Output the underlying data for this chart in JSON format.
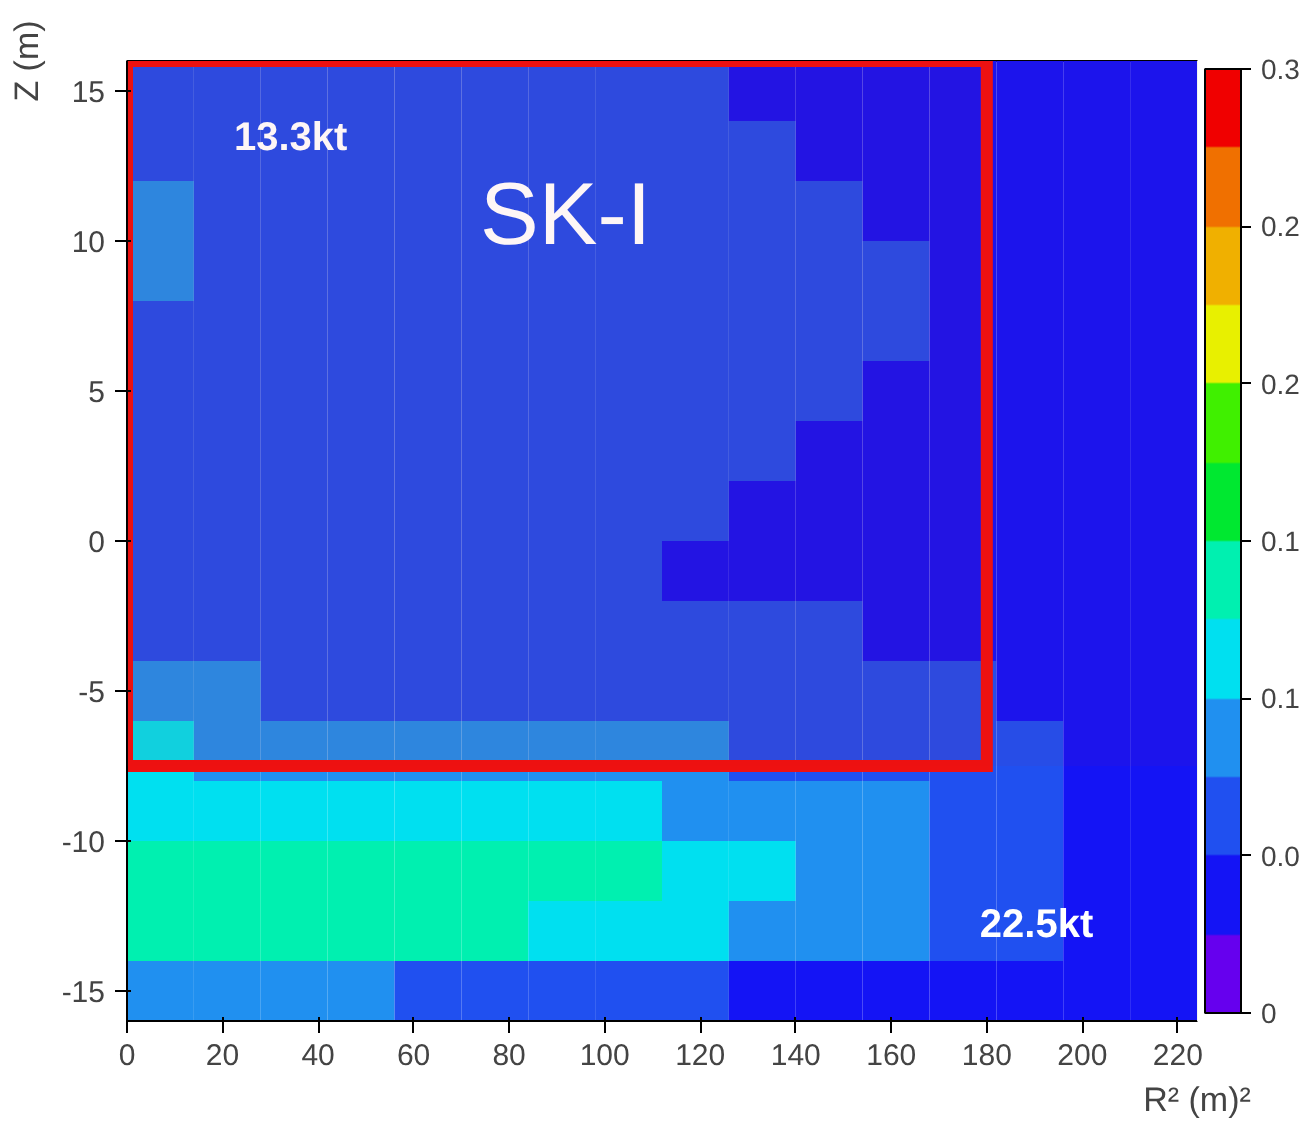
{
  "chart_data": {
    "type": "heatmap",
    "xlabel": "R² (m)²",
    "ylabel": "Z (m)",
    "xlim": [
      0,
      224
    ],
    "ylim": [
      -16,
      16
    ],
    "xticks": [
      0,
      20,
      40,
      60,
      80,
      100,
      120,
      140,
      160,
      180,
      200,
      220
    ],
    "yticks": [
      -15,
      -10,
      -5,
      0,
      5,
      10,
      15
    ],
    "clim": [
      0,
      0.3
    ],
    "cticks": [
      0,
      {
        "value": 0.05,
        "label": "0.0"
      },
      0.1,
      {
        "value": 0.15,
        "label": "0.1"
      },
      0.2,
      {
        "value": 0.25,
        "label": "0.2"
      },
      0.3
    ],
    "colors": [
      "#6600ee",
      "#1414f5",
      "#2050f0",
      "#2090f0",
      "#00e0f0",
      "#00f0b0",
      "#00e830",
      "#40f000",
      "#e8f000",
      "#f0b000",
      "#f07000",
      "#f00000"
    ],
    "cells": [
      [
        0.06,
        0.06,
        0.055,
        0.055,
        0.05,
        0.05,
        0.055,
        0.05,
        0.05,
        0.045,
        0.045,
        0.045,
        0.04,
        0.035,
        0.035,
        0.03
      ],
      [
        0.07,
        0.065,
        0.06,
        0.06,
        0.06,
        0.055,
        0.055,
        0.05,
        0.05,
        0.05,
        0.045,
        0.045,
        0.04,
        0.035,
        0.035,
        0.03
      ],
      [
        0.08,
        0.07,
        0.065,
        0.065,
        0.06,
        0.06,
        0.06,
        0.055,
        0.055,
        0.05,
        0.05,
        0.045,
        0.045,
        0.04,
        0.035,
        0.03
      ],
      [
        0.075,
        0.07,
        0.065,
        0.07,
        0.065,
        0.06,
        0.065,
        0.06,
        0.055,
        0.05,
        0.05,
        0.05,
        0.045,
        0.04,
        0.035,
        0.03
      ],
      [
        0.07,
        0.065,
        0.06,
        0.065,
        0.06,
        0.065,
        0.06,
        0.055,
        0.055,
        0.05,
        0.05,
        0.05,
        0.045,
        0.04,
        0.035,
        0.03
      ],
      [
        0.065,
        0.06,
        0.06,
        0.06,
        0.055,
        0.06,
        0.055,
        0.055,
        0.05,
        0.05,
        0.05,
        0.045,
        0.045,
        0.04,
        0.035,
        0.03
      ],
      [
        0.06,
        0.06,
        0.055,
        0.055,
        0.05,
        0.055,
        0.055,
        0.05,
        0.05,
        0.05,
        0.045,
        0.045,
        0.04,
        0.04,
        0.035,
        0.03
      ],
      [
        0.065,
        0.06,
        0.055,
        0.055,
        0.055,
        0.05,
        0.05,
        0.05,
        0.05,
        0.045,
        0.045,
        0.045,
        0.04,
        0.04,
        0.035,
        0.03
      ],
      [
        0.06,
        0.055,
        0.055,
        0.05,
        0.055,
        0.05,
        0.05,
        0.05,
        0.045,
        0.045,
        0.045,
        0.045,
        0.04,
        0.035,
        0.035,
        0.03
      ],
      [
        0.07,
        0.065,
        0.06,
        0.06,
        0.06,
        0.06,
        0.055,
        0.055,
        0.05,
        0.05,
        0.05,
        0.045,
        0.045,
        0.04,
        0.035,
        0.03
      ],
      [
        0.08,
        0.075,
        0.07,
        0.07,
        0.07,
        0.07,
        0.065,
        0.065,
        0.06,
        0.06,
        0.055,
        0.055,
        0.05,
        0.045,
        0.04,
        0.035
      ],
      [
        0.1,
        0.095,
        0.09,
        0.09,
        0.09,
        0.085,
        0.085,
        0.08,
        0.075,
        0.07,
        0.07,
        0.065,
        0.06,
        0.05,
        0.045,
        0.035
      ],
      [
        0.12,
        0.12,
        0.115,
        0.115,
        0.11,
        0.11,
        0.105,
        0.1,
        0.095,
        0.09,
        0.085,
        0.075,
        0.065,
        0.055,
        0.045,
        0.035
      ],
      [
        0.14,
        0.14,
        0.14,
        0.145,
        0.14,
        0.135,
        0.13,
        0.125,
        0.115,
        0.105,
        0.095,
        0.08,
        0.07,
        0.06,
        0.045,
        0.035
      ],
      [
        0.13,
        0.13,
        0.135,
        0.135,
        0.13,
        0.13,
        0.12,
        0.115,
        0.105,
        0.095,
        0.085,
        0.075,
        0.06,
        0.05,
        0.045,
        0.035
      ],
      [
        0.09,
        0.085,
        0.08,
        0.075,
        0.07,
        0.065,
        0.06,
        0.055,
        0.05,
        0.045,
        0.04,
        0.04,
        0.035,
        0.03,
        0.03,
        0.025
      ]
    ],
    "bands": [
      {
        "axis": "x",
        "from": 0,
        "to": 180,
        "color": "#ee1111"
      },
      {
        "axis": "y",
        "from": -7.5,
        "to": 16,
        "color": "#ee1111"
      }
    ],
    "annotations": [
      "13.3kt",
      "SK-I",
      "22.5kt"
    ]
  }
}
